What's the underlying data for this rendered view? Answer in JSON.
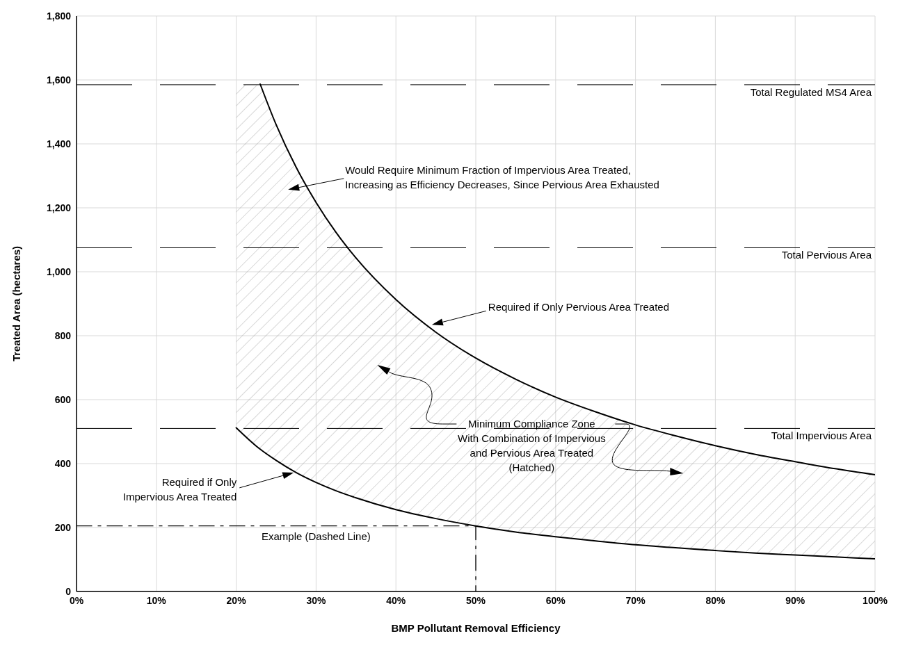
{
  "chart_data": {
    "type": "line",
    "xlabel": "BMP Pollutant Removal Efficiency",
    "ylabel": "Treated Area (hectares)",
    "xlim": [
      0,
      100
    ],
    "xticks": [
      {
        "value": 0,
        "label": "0%"
      },
      {
        "value": 10,
        "label": "10%"
      },
      {
        "value": 20,
        "label": "20%"
      },
      {
        "value": 30,
        "label": "30%"
      },
      {
        "value": 40,
        "label": "40%"
      },
      {
        "value": 50,
        "label": "50%"
      },
      {
        "value": 60,
        "label": "60%"
      },
      {
        "value": 70,
        "label": "70%"
      },
      {
        "value": 80,
        "label": "80%"
      },
      {
        "value": 90,
        "label": "90%"
      },
      {
        "value": 100,
        "label": "100%"
      }
    ],
    "ylim": [
      0,
      1800
    ],
    "yticks": [
      0,
      200,
      400,
      600,
      800,
      {
        "value": 1000,
        "label": "1,000"
      },
      {
        "value": 1200,
        "label": "1,200"
      },
      {
        "value": 1400,
        "label": "1,400"
      },
      {
        "value": 1600,
        "label": "1,600"
      },
      {
        "value": 1800,
        "label": "1,800"
      }
    ],
    "grid": true,
    "legend": false,
    "marker": "none",
    "series": [
      {
        "color": "#000000",
        "x": [
          23,
          25,
          27.5,
          30,
          32.5,
          35,
          40,
          45,
          50,
          55,
          60,
          65,
          70,
          75,
          80,
          85,
          90,
          95,
          100
        ],
        "values": [
          1587,
          1460,
          1327,
          1217,
          1123,
          1043,
          913,
          811,
          730,
          664,
          608,
          562,
          521,
          487,
          456,
          429,
          406,
          384,
          365
        ]
      },
      {
        "color": "#000000",
        "x": [
          20,
          22.5,
          23,
          25,
          27.5,
          30,
          32.5,
          35,
          40,
          45,
          50,
          55,
          60,
          65,
          70,
          75,
          80,
          85,
          90,
          95,
          100
        ],
        "values": [
          512,
          455,
          445,
          410,
          372,
          341,
          315,
          293,
          256,
          228,
          205,
          186,
          171,
          158,
          146,
          137,
          128,
          120,
          114,
          108,
          102
        ],
        "lower": [
          512,
          455,
          445,
          410,
          372,
          341,
          315,
          293,
          256,
          228,
          205,
          186,
          171,
          158,
          146,
          137,
          128,
          120,
          114,
          108,
          102
        ],
        "upper": [
          1585,
          1585,
          1585,
          1460,
          1327,
          1217,
          1123,
          1043,
          913,
          811,
          730,
          664,
          608,
          562,
          521,
          487,
          456,
          429,
          406,
          384,
          365
        ]
      },
      {
        "color": "#000000",
        "line_style": "dashed",
        "x": [
          0,
          50,
          50
        ],
        "values": [
          205,
          205,
          0
        ]
      }
    ],
    "ref_lines": [
      {
        "axis": "y",
        "value": 1585,
        "label": "Total Regulated MS4 Area",
        "color": "#000000",
        "line_style": "dashed"
      },
      {
        "axis": "y",
        "value": 1075,
        "label": "Total Pervious Area",
        "color": "#000000",
        "line_style": "dashed"
      },
      {
        "axis": "y",
        "value": 510,
        "label": "Total Impervious Area",
        "color": "#000000",
        "line_style": "dashed"
      }
    ],
    "annotations": [
      "Would Require Minimum Fraction of Impervious Area Treated,\nIncreasing as Efficiency Decreases, Since Pervious Area Exhausted",
      "Required if Only Pervious Area Treated",
      "Required if Only\nImpervious Area Treated",
      "Minimum Compliance Zone\nWith Combination of Impervious\nand Pervious Area Treated\n(Hatched)",
      "Example (Dashed Line)"
    ]
  }
}
